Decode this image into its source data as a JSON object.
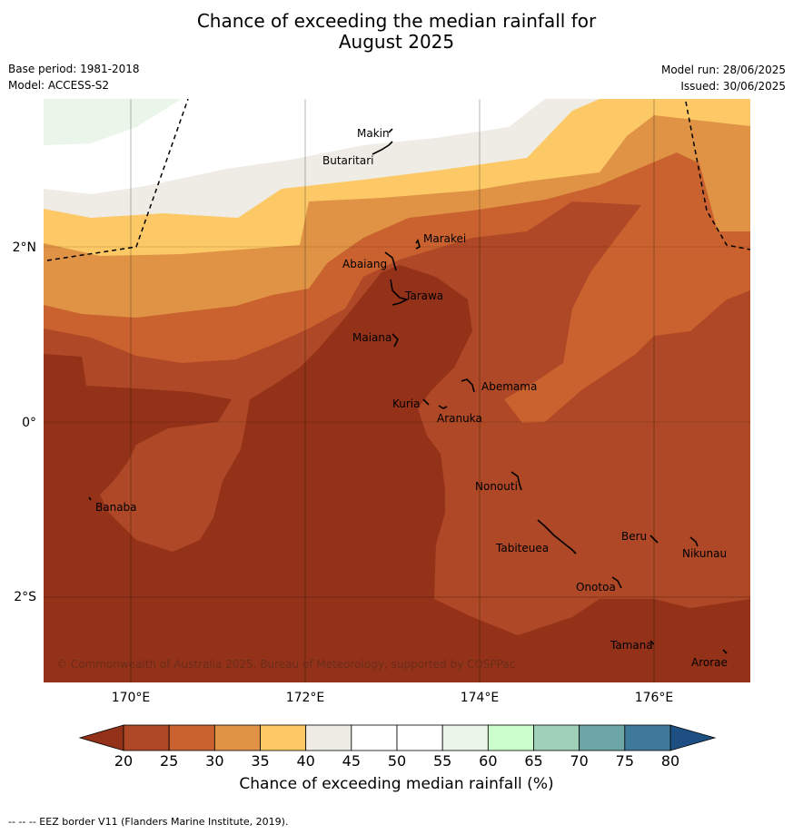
{
  "title_line1": "Chance of exceeding the median rainfall for",
  "title_line2": "August 2025",
  "base_period": "Base period: 1981-2018",
  "model": "Model: ACCESS-S2",
  "model_run": "Model run: 28/06/2025",
  "issued": "Issued: 30/06/2025",
  "copyright": "© Commonwealth of Australia 2025, Bureau of Meteorology, supported by COSPPac",
  "lat_labels": [
    "2°N",
    "0°",
    "2°S"
  ],
  "lon_labels": [
    "170°E",
    "172°E",
    "174°E",
    "176°E"
  ],
  "places": [
    "Makin",
    "Butaritari",
    "Marakei",
    "Abaiang",
    "Tarawa",
    "Maiana",
    "Abemama",
    "Kuria",
    "Aranuka",
    "Banaba",
    "Nonouti",
    "Beru",
    "Nikunau",
    "Tabiteuea",
    "Onotoa",
    "Tamana",
    "Arorae"
  ],
  "colorbar": {
    "ticks": [
      "20",
      "25",
      "30",
      "35",
      "40",
      "45",
      "50",
      "55",
      "60",
      "65",
      "70",
      "75",
      "80"
    ],
    "colors": [
      "#ae4826",
      "#c9622e",
      "#e09345",
      "#fcc966",
      "#efece6",
      "#ffffff",
      "#ffffff",
      "#eaf6e9",
      "#cbfdcc",
      "#9fd1ba",
      "#6ca6a7",
      "#3f7a9c"
    ],
    "under_color": "#943219",
    "over_color": "#1d4f82",
    "label": "Chance of exceeding median rainfall (%)"
  },
  "footer": "--  --  -- EEZ border V11 (Flanders Marine Institute, 2019)."
}
